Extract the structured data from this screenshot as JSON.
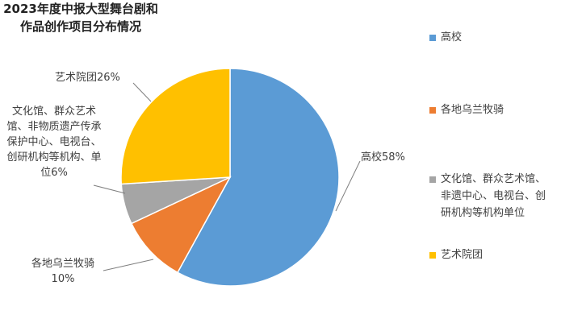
{
  "chart_data": {
    "type": "pie",
    "title": "2023年度中报大型舞台剧和作品创作项目分布情况",
    "categories": [
      "高校",
      "各地乌兰牧骑",
      "文化馆、群众艺术馆、非遗中心、电视台、创研机构等机构单位",
      "艺术院团"
    ],
    "values": [
      58,
      10,
      6,
      26
    ],
    "value_labels": [
      "高校58%",
      "各地乌兰牧骑 10%",
      "文化馆、群众艺术馆、非物质遗产传承保护中心、电视台、创研机构等机构、单位6%",
      "艺术院团26%"
    ],
    "colors": [
      "#5b9bd5",
      "#ed7d31",
      "#a5a5a5",
      "#ffc000"
    ],
    "legend": "right"
  }
}
